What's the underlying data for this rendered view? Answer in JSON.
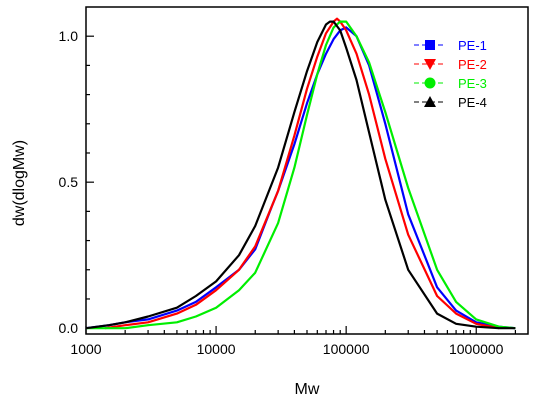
{
  "chart_data": {
    "type": "line",
    "xlabel": "Mw",
    "ylabel": "dw(dlogMw)",
    "x_scale": "log",
    "xlim": [
      1000,
      2500000
    ],
    "ylim": [
      -0.02,
      1.1
    ],
    "x_ticks": [
      {
        "value": 1000,
        "label": "1000"
      },
      {
        "value": 10000,
        "label": "10000"
      },
      {
        "value": 100000,
        "label": "100000"
      },
      {
        "value": 1000000,
        "label": "1000000"
      }
    ],
    "y_ticks": [
      {
        "value": 0.0,
        "label": "0.0"
      },
      {
        "value": 0.5,
        "label": "0.5"
      },
      {
        "value": 1.0,
        "label": "1.0"
      }
    ],
    "grid": false,
    "legend_position": "top-right",
    "series": [
      {
        "name": "PE-1",
        "color": "#0000ff",
        "marker": "square",
        "x": [
          1000,
          1500,
          2000,
          3000,
          5000,
          7000,
          10000,
          15000,
          20000,
          27000,
          30000,
          40000,
          50000,
          60000,
          70000,
          80000,
          90000,
          100000,
          120000,
          150000,
          200000,
          300000,
          500000,
          700000,
          1000000,
          1500000,
          2000000
        ],
        "y": [
          0.0,
          0.01,
          0.02,
          0.03,
          0.06,
          0.09,
          0.14,
          0.2,
          0.27,
          0.42,
          0.47,
          0.63,
          0.77,
          0.87,
          0.94,
          0.99,
          1.02,
          1.03,
          1.0,
          0.9,
          0.7,
          0.39,
          0.14,
          0.06,
          0.02,
          0.005,
          0.0
        ]
      },
      {
        "name": "PE-2",
        "color": "#ff0000",
        "marker": "triangle-down",
        "x": [
          1400,
          2000,
          3000,
          5000,
          7000,
          10000,
          15000,
          20000,
          30000,
          40000,
          50000,
          60000,
          70000,
          80000,
          85000,
          90000,
          100000,
          120000,
          150000,
          200000,
          300000,
          500000,
          700000,
          1000000,
          1500000
        ],
        "y": [
          0.0,
          0.01,
          0.02,
          0.05,
          0.08,
          0.13,
          0.2,
          0.28,
          0.47,
          0.66,
          0.82,
          0.93,
          1.01,
          1.05,
          1.06,
          1.05,
          1.02,
          0.94,
          0.8,
          0.58,
          0.32,
          0.11,
          0.05,
          0.015,
          0.0
        ]
      },
      {
        "name": "PE-3",
        "color": "#00ee00",
        "marker": "circle",
        "x": [
          1000,
          2000,
          3000,
          5000,
          7000,
          10000,
          15000,
          20000,
          30000,
          40000,
          50000,
          60000,
          70000,
          80000,
          90000,
          100000,
          120000,
          150000,
          200000,
          300000,
          500000,
          700000,
          1000000,
          1500000,
          2000000
        ],
        "y": [
          0.0,
          0.0,
          0.01,
          0.02,
          0.04,
          0.07,
          0.13,
          0.19,
          0.36,
          0.55,
          0.73,
          0.87,
          0.97,
          1.03,
          1.05,
          1.05,
          1.0,
          0.91,
          0.74,
          0.48,
          0.2,
          0.09,
          0.03,
          0.005,
          0.0
        ]
      },
      {
        "name": "PE-4",
        "color": "#000000",
        "marker": "triangle-up",
        "x": [
          1000,
          1500,
          2000,
          3000,
          5000,
          7000,
          10000,
          15000,
          20000,
          30000,
          40000,
          50000,
          60000,
          70000,
          75000,
          80000,
          90000,
          100000,
          120000,
          150000,
          200000,
          300000,
          500000,
          700000,
          1000000,
          1500000,
          2000000
        ],
        "y": [
          0.0,
          0.01,
          0.02,
          0.04,
          0.07,
          0.11,
          0.16,
          0.25,
          0.35,
          0.55,
          0.74,
          0.88,
          0.98,
          1.04,
          1.05,
          1.05,
          1.02,
          0.96,
          0.85,
          0.67,
          0.44,
          0.2,
          0.05,
          0.015,
          0.005,
          0.0,
          0.0
        ]
      }
    ]
  }
}
